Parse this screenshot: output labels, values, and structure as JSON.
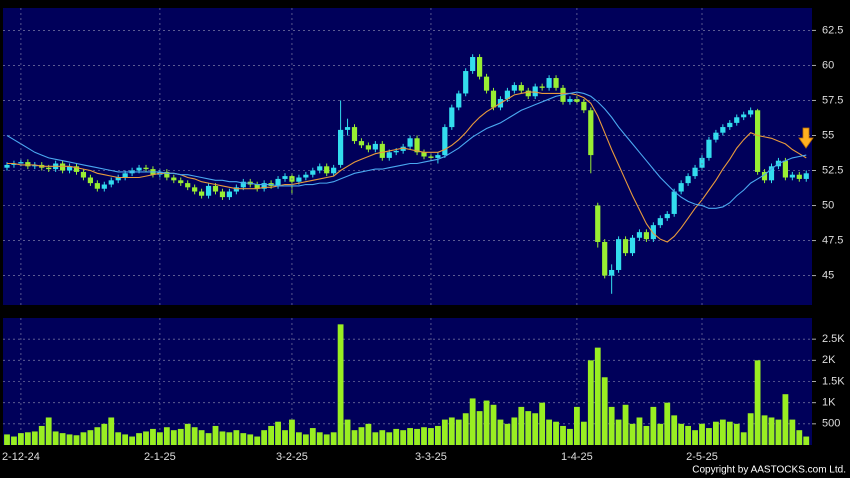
{
  "chart_data": [
    {
      "type": "candlestick",
      "ylim": [
        42.9,
        64.1
      ],
      "yticks": [
        45,
        47.5,
        50,
        52.5,
        55,
        57.5,
        60,
        62.5
      ],
      "grid": true,
      "up_color": "#33ddee",
      "down_color": "#99ee33",
      "candles": [
        [
          52.7,
          53.1,
          52.5,
          52.9
        ],
        [
          52.9,
          53.2,
          52.7,
          53.0
        ],
        [
          53.0,
          53.3,
          52.8,
          53.1
        ],
        [
          53.1,
          53.3,
          52.6,
          52.8
        ],
        [
          52.8,
          53.1,
          52.6,
          52.9
        ],
        [
          52.9,
          53.1,
          52.5,
          52.7
        ],
        [
          52.7,
          52.9,
          52.4,
          52.6
        ],
        [
          52.6,
          53.2,
          52.4,
          53.0
        ],
        [
          53.0,
          53.2,
          52.3,
          52.5
        ],
        [
          52.5,
          53.0,
          52.3,
          52.8
        ],
        [
          52.8,
          53.0,
          52.2,
          52.4
        ],
        [
          52.4,
          52.6,
          51.8,
          52.0
        ],
        [
          52.0,
          52.2,
          51.4,
          51.6
        ],
        [
          51.6,
          51.8,
          51.0,
          51.2
        ],
        [
          51.2,
          51.7,
          51.0,
          51.5
        ],
        [
          51.5,
          52.0,
          51.3,
          51.8
        ],
        [
          51.8,
          52.2,
          51.6,
          52.0
        ],
        [
          52.0,
          52.5,
          51.8,
          52.3
        ],
        [
          52.3,
          52.7,
          52.1,
          52.5
        ],
        [
          52.5,
          52.9,
          52.3,
          52.7
        ],
        [
          52.7,
          52.9,
          52.4,
          52.6
        ],
        [
          52.6,
          52.8,
          52.0,
          52.2
        ],
        [
          52.2,
          52.6,
          52.0,
          52.4
        ],
        [
          52.4,
          52.6,
          51.8,
          52.0
        ],
        [
          52.0,
          52.2,
          51.6,
          51.8
        ],
        [
          51.8,
          52.0,
          51.4,
          51.6
        ],
        [
          51.6,
          51.8,
          51.1,
          51.3
        ],
        [
          51.3,
          51.5,
          50.8,
          51.0
        ],
        [
          51.0,
          51.2,
          50.5,
          50.7
        ],
        [
          50.7,
          51.6,
          50.5,
          51.4
        ],
        [
          51.4,
          51.6,
          50.8,
          51.0
        ],
        [
          51.0,
          51.2,
          50.4,
          50.6
        ],
        [
          50.6,
          51.2,
          50.4,
          51.0
        ],
        [
          51.0,
          51.5,
          50.8,
          51.3
        ],
        [
          51.3,
          51.9,
          51.1,
          51.7
        ],
        [
          51.7,
          51.9,
          51.3,
          51.5
        ],
        [
          51.5,
          51.7,
          51.0,
          51.2
        ],
        [
          51.2,
          51.8,
          51.0,
          51.6
        ],
        [
          51.6,
          51.8,
          51.2,
          51.4
        ],
        [
          51.4,
          52.1,
          51.2,
          51.9
        ],
        [
          51.9,
          52.3,
          51.7,
          52.1
        ],
        [
          52.1,
          52.3,
          50.8,
          51.7
        ],
        [
          51.7,
          52.2,
          51.5,
          52.0
        ],
        [
          52.0,
          52.4,
          51.8,
          52.2
        ],
        [
          52.2,
          52.7,
          52.0,
          52.5
        ],
        [
          52.5,
          53.0,
          52.3,
          52.8
        ],
        [
          52.8,
          53.0,
          52.1,
          52.3
        ],
        [
          52.3,
          52.9,
          52.1,
          52.7
        ],
        [
          52.9,
          57.5,
          52.7,
          55.4
        ],
        [
          55.4,
          56.2,
          55.0,
          55.6
        ],
        [
          55.6,
          55.8,
          54.4,
          54.6
        ],
        [
          54.6,
          54.8,
          54.1,
          54.3
        ],
        [
          54.3,
          54.5,
          53.8,
          54.0
        ],
        [
          54.0,
          54.6,
          53.8,
          54.4
        ],
        [
          54.4,
          54.6,
          53.2,
          53.4
        ],
        [
          53.4,
          54.0,
          53.2,
          53.8
        ],
        [
          53.8,
          54.1,
          53.6,
          53.9
        ],
        [
          53.9,
          54.4,
          53.7,
          54.2
        ],
        [
          54.2,
          55.0,
          54.0,
          54.8
        ],
        [
          54.8,
          55.0,
          53.6,
          53.8
        ],
        [
          53.8,
          54.0,
          53.3,
          53.5
        ],
        [
          53.5,
          53.7,
          53.2,
          53.4
        ],
        [
          53.4,
          53.8,
          53.0,
          53.6
        ],
        [
          53.6,
          55.8,
          53.4,
          55.6
        ],
        [
          55.6,
          57.2,
          55.4,
          57.0
        ],
        [
          57.0,
          58.2,
          56.8,
          58.0
        ],
        [
          58.0,
          59.8,
          57.8,
          59.6
        ],
        [
          59.6,
          60.8,
          59.4,
          60.6
        ],
        [
          60.6,
          60.8,
          59.0,
          59.2
        ],
        [
          59.2,
          59.4,
          58.0,
          58.2
        ],
        [
          58.2,
          58.4,
          56.8,
          57.0
        ],
        [
          57.0,
          57.8,
          56.8,
          57.6
        ],
        [
          57.6,
          58.4,
          57.4,
          58.2
        ],
        [
          58.2,
          58.8,
          58.0,
          58.6
        ],
        [
          58.6,
          58.8,
          58.0,
          58.2
        ],
        [
          58.2,
          58.4,
          57.6,
          57.8
        ],
        [
          57.8,
          58.7,
          57.6,
          58.5
        ],
        [
          58.5,
          58.7,
          58.2,
          58.4
        ],
        [
          58.4,
          59.3,
          58.2,
          59.1
        ],
        [
          59.1,
          59.3,
          58.2,
          58.4
        ],
        [
          58.4,
          58.6,
          57.2,
          57.4
        ],
        [
          57.4,
          57.8,
          57.2,
          57.6
        ],
        [
          57.6,
          57.8,
          57.2,
          57.4
        ],
        [
          57.4,
          57.6,
          56.6,
          56.8
        ],
        [
          56.8,
          57.0,
          52.3,
          53.6
        ],
        [
          50.0,
          50.2,
          47.0,
          47.4
        ],
        [
          47.4,
          47.6,
          44.8,
          45.0
        ],
        [
          45.0,
          45.8,
          43.7,
          45.4
        ],
        [
          45.4,
          47.8,
          45.2,
          47.6
        ],
        [
          47.6,
          47.8,
          46.4,
          46.6
        ],
        [
          46.6,
          47.9,
          46.4,
          47.7
        ],
        [
          47.7,
          48.3,
          47.5,
          48.1
        ],
        [
          48.1,
          48.3,
          47.4,
          47.6
        ],
        [
          47.6,
          48.8,
          47.4,
          48.6
        ],
        [
          48.6,
          49.3,
          48.4,
          49.1
        ],
        [
          49.1,
          49.6,
          48.9,
          49.4
        ],
        [
          49.4,
          51.2,
          49.2,
          51.0
        ],
        [
          51.0,
          51.8,
          50.8,
          51.6
        ],
        [
          51.6,
          52.3,
          51.4,
          52.1
        ],
        [
          52.1,
          52.9,
          51.9,
          52.7
        ],
        [
          52.7,
          53.6,
          52.5,
          53.4
        ],
        [
          53.4,
          54.9,
          53.2,
          54.7
        ],
        [
          54.7,
          55.4,
          54.5,
          55.2
        ],
        [
          55.2,
          55.8,
          55.0,
          55.6
        ],
        [
          55.6,
          56.1,
          55.4,
          55.9
        ],
        [
          55.9,
          56.5,
          55.7,
          56.3
        ],
        [
          56.3,
          56.7,
          56.1,
          56.5
        ],
        [
          56.5,
          57.0,
          56.3,
          56.8
        ],
        [
          56.8,
          56.9,
          52.2,
          52.4
        ],
        [
          52.4,
          52.6,
          51.6,
          51.8
        ],
        [
          51.8,
          53.0,
          51.6,
          52.8
        ],
        [
          52.8,
          53.4,
          52.6,
          53.2
        ],
        [
          53.2,
          53.4,
          51.8,
          52.0
        ],
        [
          52.0,
          52.4,
          51.8,
          52.2
        ],
        [
          52.2,
          52.4,
          51.7,
          51.9
        ],
        [
          51.9,
          52.5,
          51.7,
          52.3
        ]
      ],
      "series": [
        {
          "color": "#e89a3c",
          "values": [
            53.0,
            53.0,
            52.9,
            52.9,
            52.9,
            52.8,
            52.8,
            52.8,
            52.8,
            52.8,
            52.7,
            52.6,
            52.5,
            52.3,
            52.2,
            52.1,
            52.0,
            52.0,
            52.0,
            52.0,
            52.1,
            52.2,
            52.3,
            52.3,
            52.3,
            52.2,
            52.0,
            51.9,
            51.7,
            51.6,
            51.5,
            51.4,
            51.3,
            51.2,
            51.2,
            51.2,
            51.2,
            51.3,
            51.3,
            51.4,
            51.5,
            51.5,
            51.6,
            51.7,
            51.8,
            51.9,
            52.0,
            52.1,
            52.5,
            52.8,
            53.1,
            53.3,
            53.5,
            53.7,
            53.8,
            53.9,
            54.0,
            54.1,
            54.0,
            53.9,
            53.8,
            53.8,
            53.8,
            54.0,
            54.3,
            54.7,
            55.2,
            55.8,
            56.3,
            56.7,
            57.0,
            57.3,
            57.6,
            57.9,
            58.0,
            58.1,
            58.1,
            58.0,
            58.0,
            58.0,
            58.0,
            58.0,
            57.9,
            57.7,
            57.3,
            56.4,
            55.2,
            54.0,
            52.9,
            51.8,
            50.7,
            49.7,
            48.7,
            48.0,
            47.6,
            47.4,
            47.8,
            48.4,
            49.1,
            49.8,
            50.4,
            51.1,
            51.8,
            52.6,
            53.3,
            54.1,
            54.7,
            55.2,
            55.0,
            54.9,
            54.8,
            54.6,
            54.4,
            54.0,
            53.7,
            53.4
          ]
        },
        {
          "color": "#4aa8f0",
          "values": [
            55.0,
            54.7,
            54.4,
            54.1,
            53.8,
            53.6,
            53.4,
            53.3,
            53.2,
            53.1,
            53.0,
            52.9,
            52.8,
            52.7,
            52.6,
            52.5,
            52.4,
            52.4,
            52.4,
            52.4,
            52.4,
            52.4,
            52.4,
            52.3,
            52.3,
            52.2,
            52.2,
            52.1,
            52.0,
            51.9,
            51.8,
            51.8,
            51.7,
            51.7,
            51.6,
            51.6,
            51.5,
            51.5,
            51.5,
            51.4,
            51.4,
            51.4,
            51.4,
            51.5,
            51.5,
            51.6,
            51.6,
            51.7,
            51.9,
            52.1,
            52.3,
            52.4,
            52.5,
            52.6,
            52.6,
            52.7,
            52.8,
            52.9,
            53.0,
            53.0,
            53.1,
            53.2,
            53.3,
            53.5,
            53.8,
            54.1,
            54.5,
            54.9,
            55.2,
            55.5,
            55.7,
            55.9,
            56.2,
            56.5,
            56.8,
            57.0,
            57.2,
            57.4,
            57.6,
            57.8,
            57.9,
            58.0,
            58.1,
            58.0,
            57.8,
            57.4,
            56.9,
            56.3,
            55.6,
            55.0,
            54.4,
            53.8,
            53.2,
            52.6,
            52.0,
            51.5,
            51.0,
            50.6,
            50.3,
            50.1,
            50.0,
            49.8,
            49.8,
            49.9,
            50.2,
            50.7,
            51.1,
            51.6,
            51.9,
            52.2,
            52.6,
            53.0,
            53.2,
            53.4,
            53.5,
            53.6
          ]
        }
      ]
    },
    {
      "type": "bar",
      "ylim": [
        0,
        3000
      ],
      "yticks": [
        500,
        {
          "value": 1000,
          "label": "1K"
        },
        {
          "value": 1500,
          "label": "1.5K"
        },
        {
          "value": 2000,
          "label": "2K"
        },
        {
          "value": 2500,
          "label": "2.5K"
        }
      ],
      "grid": true,
      "color": "#99ee22",
      "annotation": "Copyright by AASTOCKS.com Ltd.",
      "categories": [
        null,
        null,
        "2-12-24",
        null,
        null,
        null,
        null,
        null,
        null,
        null,
        null,
        null,
        null,
        null,
        null,
        null,
        null,
        null,
        null,
        null,
        null,
        null,
        "2-1-25",
        null,
        null,
        null,
        null,
        null,
        null,
        null,
        null,
        null,
        null,
        null,
        null,
        null,
        null,
        null,
        null,
        null,
        null,
        "3-2-25",
        null,
        null,
        null,
        null,
        null,
        null,
        null,
        null,
        null,
        null,
        null,
        null,
        null,
        null,
        null,
        null,
        null,
        null,
        null,
        "3-3-25",
        null,
        null,
        null,
        null,
        null,
        null,
        null,
        null,
        null,
        null,
        null,
        null,
        null,
        null,
        null,
        null,
        null,
        null,
        null,
        null,
        "1-4-25",
        null,
        null,
        null,
        null,
        null,
        null,
        null,
        null,
        null,
        null,
        null,
        null,
        null,
        null,
        null,
        null,
        null,
        "2-5-25",
        null,
        null,
        null,
        null,
        null,
        null,
        null,
        null,
        null,
        null,
        null,
        null,
        null,
        null,
        null
      ],
      "values": [
        250,
        200,
        280,
        300,
        320,
        450,
        650,
        320,
        280,
        250,
        230,
        300,
        350,
        420,
        500,
        650,
        300,
        250,
        200,
        280,
        320,
        380,
        300,
        420,
        350,
        380,
        500,
        420,
        350,
        280,
        450,
        320,
        300,
        350,
        280,
        250,
        200,
        350,
        450,
        550,
        350,
        600,
        300,
        250,
        400,
        300,
        250,
        300,
        2850,
        600,
        350,
        420,
        500,
        300,
        350,
        300,
        380,
        350,
        400,
        380,
        420,
        400,
        450,
        600,
        650,
        600,
        750,
        1100,
        800,
        1050,
        950,
        600,
        500,
        650,
        900,
        800,
        750,
        1000,
        600,
        550,
        450,
        380,
        900,
        550,
        2000,
        2300,
        1600,
        900,
        600,
        950,
        500,
        650,
        450,
        900,
        500,
        1000,
        700,
        500,
        450,
        350,
        500,
        400,
        550,
        600,
        550,
        500,
        300,
        750,
        2000,
        700,
        650,
        600,
        1200,
        600,
        350,
        200
      ]
    }
  ]
}
